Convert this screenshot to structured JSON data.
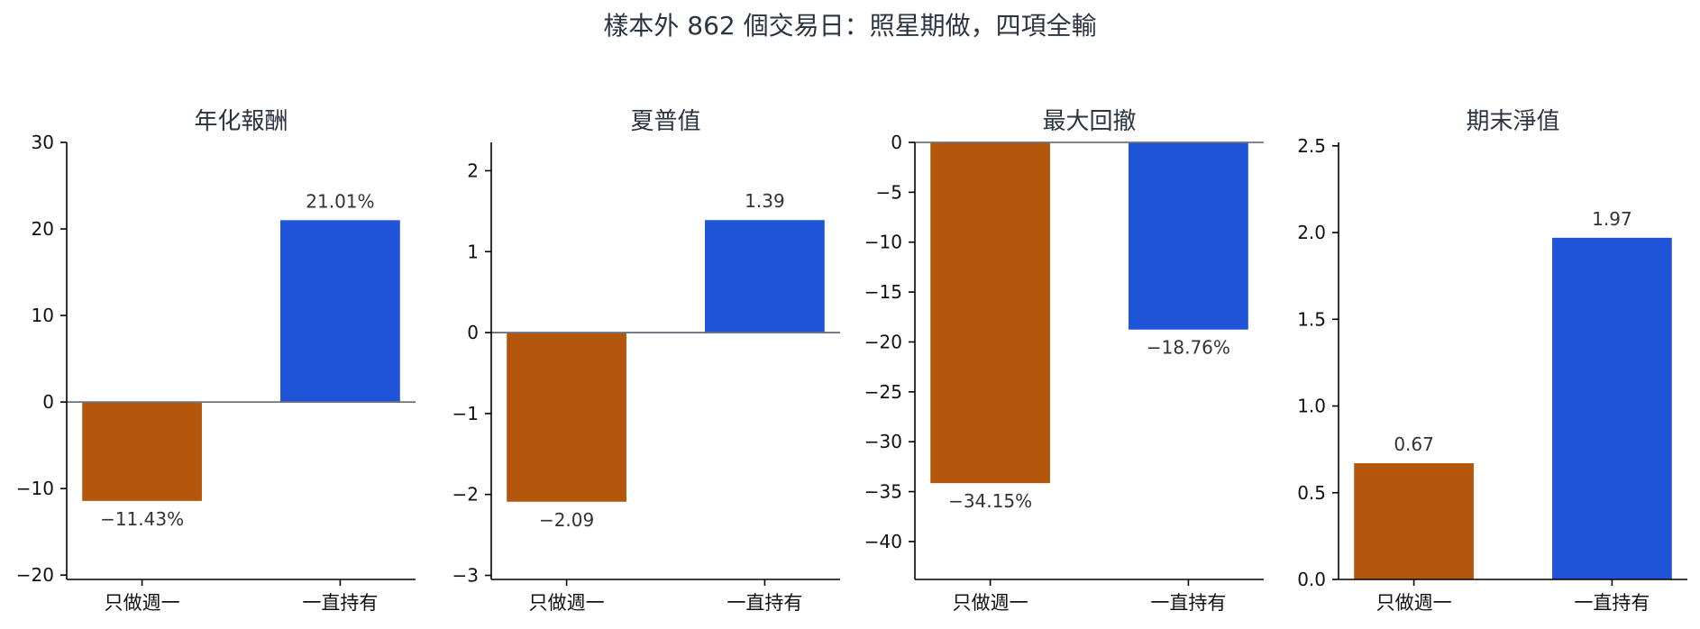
{
  "figure": {
    "title": "樣本外 862 個交易日：照星期做，四項全輸"
  },
  "chart_data": [
    {
      "type": "bar",
      "title": "年化報酬",
      "categories": [
        "只做週一",
        "一直持有"
      ],
      "values": [
        -11.43,
        21.01
      ],
      "data_labels": [
        "−11.43%",
        "21.01%"
      ],
      "colors": [
        "#b5560d",
        "#1f53d8"
      ],
      "ylim": [
        -20.5,
        30
      ],
      "yticks": [
        -20,
        -10,
        0,
        10,
        20,
        30
      ],
      "ytick_labels": [
        "−20",
        "−10",
        "0",
        "10",
        "20",
        "30"
      ],
      "zero_line": true,
      "xlabel": "",
      "ylabel": ""
    },
    {
      "type": "bar",
      "title": "夏普值",
      "categories": [
        "只做週一",
        "一直持有"
      ],
      "values": [
        -2.09,
        1.39
      ],
      "data_labels": [
        "−2.09",
        "1.39"
      ],
      "colors": [
        "#b5560d",
        "#1f53d8"
      ],
      "ylim": [
        -3.05,
        2.35
      ],
      "yticks": [
        -3,
        -2,
        -1,
        0,
        1,
        2
      ],
      "ytick_labels": [
        "−3",
        "−2",
        "−1",
        "0",
        "1",
        "2"
      ],
      "zero_line": true,
      "xlabel": "",
      "ylabel": ""
    },
    {
      "type": "bar",
      "title": "最大回撤",
      "categories": [
        "只做週一",
        "一直持有"
      ],
      "values": [
        -34.15,
        -18.76
      ],
      "data_labels": [
        "−34.15%",
        "−18.76%"
      ],
      "colors": [
        "#b5560d",
        "#1f53d8"
      ],
      "ylim": [
        -43.8,
        0
      ],
      "yticks": [
        -40,
        -35,
        -30,
        -25,
        -20,
        -15,
        -10,
        -5,
        0
      ],
      "ytick_labels": [
        "−40",
        "−35",
        "−30",
        "−25",
        "−20",
        "−15",
        "−10",
        "−5",
        "0"
      ],
      "zero_line": true,
      "xlabel": "",
      "ylabel": ""
    },
    {
      "type": "bar",
      "title": "期末淨值",
      "categories": [
        "只做週一",
        "一直持有"
      ],
      "values": [
        0.67,
        1.97
      ],
      "data_labels": [
        "0.67",
        "1.97"
      ],
      "colors": [
        "#b5560d",
        "#1f53d8"
      ],
      "ylim": [
        0,
        2.52
      ],
      "yticks": [
        0,
        0.5,
        1.0,
        1.5,
        2.0,
        2.5
      ],
      "ytick_labels": [
        "0.0",
        "0.5",
        "1.0",
        "1.5",
        "2.0",
        "2.5"
      ],
      "zero_line": false,
      "xlabel": "",
      "ylabel": ""
    }
  ]
}
